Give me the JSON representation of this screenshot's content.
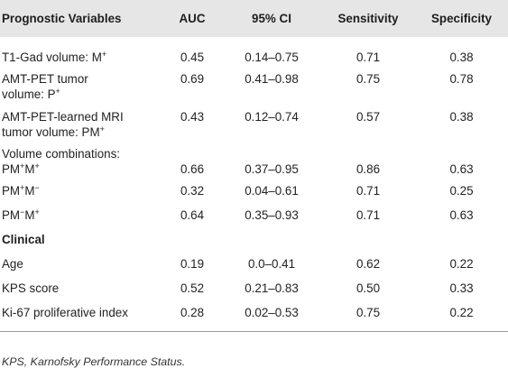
{
  "table": {
    "headers": [
      "Prognostic Variables",
      "AUC",
      "95% CI",
      "Sensitivity",
      "Specificity"
    ],
    "rows": [
      {
        "label": "T1-Gad volume: M",
        "label_sup": "+",
        "auc": "0.45",
        "ci": "0.14–0.75",
        "sensitivity": "0.71",
        "specificity": "0.38"
      },
      {
        "label_line1": "AMT-PET tumor",
        "label_line2": "volume: P",
        "label_sup": "+",
        "auc": "0.69",
        "ci": "0.41–0.98",
        "sensitivity": "0.75",
        "specificity": "0.78"
      },
      {
        "label_line1": "AMT-PET-learned MRI",
        "label_line2": "tumor volume: PM",
        "label_sup": "+",
        "auc": "0.43",
        "ci": "0.12–0.74",
        "sensitivity": "0.57",
        "specificity": "0.38"
      }
    ],
    "combinations_label": "Volume combinations:",
    "combo_rows": [
      {
        "p1": "PM",
        "s1": "+",
        "p2": "M",
        "s2": "+",
        "auc": "0.66",
        "ci": "0.37–0.95",
        "sensitivity": "0.86",
        "specificity": "0.63"
      },
      {
        "p1": "PM",
        "s1": "+",
        "p2": "M",
        "s2": "−",
        "auc": "0.32",
        "ci": "0.04–0.61",
        "sensitivity": "0.71",
        "specificity": "0.25"
      },
      {
        "p1": "PM",
        "s1": "−",
        "p2": "M",
        "s2": "+",
        "auc": "0.64",
        "ci": "0.35–0.93",
        "sensitivity": "0.71",
        "specificity": "0.63"
      }
    ],
    "clinical_label": "Clinical",
    "clinical_rows": [
      {
        "label": "Age",
        "auc": "0.19",
        "ci": "0.0–0.41",
        "sensitivity": "0.62",
        "specificity": "0.22"
      },
      {
        "label": "KPS score",
        "auc": "0.52",
        "ci": "0.21–0.83",
        "sensitivity": "0.50",
        "specificity": "0.33"
      },
      {
        "label": "Ki-67 proliferative index",
        "auc": "0.28",
        "ci": "0.02–0.53",
        "sensitivity": "0.75",
        "specificity": "0.22"
      }
    ]
  },
  "footnote": "KPS, Karnofsky Performance Status."
}
